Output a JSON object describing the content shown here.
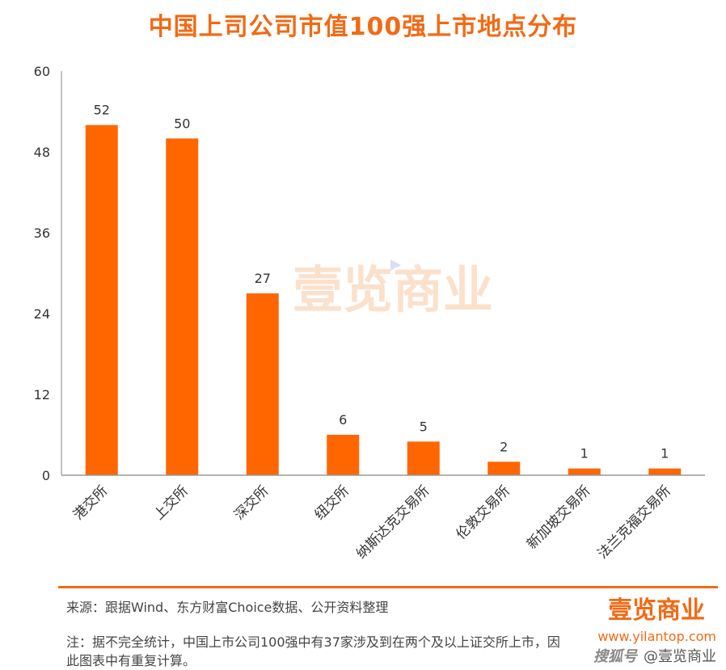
{
  "chart_data": {
    "type": "bar",
    "title": "中国上司公司市值100强上市地点分布",
    "categories": [
      "港交所",
      "上交所",
      "深交所",
      "纽交所",
      "纳斯达克交易所",
      "伦敦交易所",
      "新加坡交易所",
      "法兰克福交易所"
    ],
    "values": [
      52,
      50,
      27,
      6,
      5,
      2,
      1,
      1
    ],
    "ylim": [
      0,
      60
    ],
    "yticks": [
      0,
      12,
      24,
      36,
      48,
      60
    ],
    "grid": false,
    "legend": "none",
    "bar_color": "#ff6600",
    "data_labels": true
  },
  "watermark": "壹览商业",
  "footer": {
    "source": "来源：跟据Wind、东方财富Choice数据、公开资料整理",
    "note": "注：据不完全统计，中国上市公司100强中有37家涉及到在两个及以上证交所上市，因此图表中有重复计算。",
    "brand_logo": "壹览商业",
    "brand_url": "www.yilantop.com",
    "sohu": "搜狐号",
    "brand_account": "@壹览商业"
  },
  "colors": {
    "accent": "#f26a14",
    "bar": "#ff6600"
  }
}
